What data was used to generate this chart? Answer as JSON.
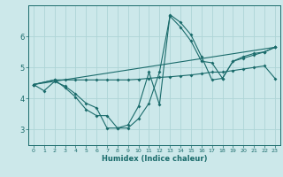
{
  "xlabel": "Humidex (Indice chaleur)",
  "bg_color": "#cce8ea",
  "line_color": "#1a6b6b",
  "grid_color": "#aed4d6",
  "xlim": [
    -0.5,
    23.5
  ],
  "ylim": [
    2.5,
    7.0
  ],
  "yticks": [
    3,
    4,
    5,
    6
  ],
  "xticks": [
    0,
    1,
    2,
    3,
    4,
    5,
    6,
    7,
    8,
    9,
    10,
    11,
    12,
    13,
    14,
    15,
    16,
    17,
    18,
    19,
    20,
    21,
    22,
    23
  ],
  "lines": [
    {
      "x": [
        0,
        1,
        2,
        3,
        4,
        5,
        6,
        7,
        8,
        9,
        10,
        11,
        12,
        13,
        14,
        15,
        16,
        17,
        18,
        19,
        20,
        21,
        22,
        23
      ],
      "y": [
        4.45,
        4.25,
        4.55,
        4.4,
        4.15,
        3.85,
        3.7,
        3.05,
        3.05,
        3.15,
        3.75,
        4.85,
        3.8,
        6.7,
        6.45,
        6.05,
        5.35,
        4.6,
        4.65,
        5.2,
        5.35,
        5.45,
        5.5,
        5.65
      ]
    },
    {
      "x": [
        0,
        2,
        3,
        4,
        5,
        6,
        7,
        8,
        9,
        10,
        11,
        12,
        13,
        14,
        15,
        16,
        17,
        18,
        19,
        20,
        21,
        22,
        23
      ],
      "y": [
        4.45,
        4.6,
        4.6,
        4.6,
        4.6,
        4.6,
        4.6,
        4.6,
        4.6,
        4.62,
        4.65,
        4.68,
        4.7,
        4.73,
        4.76,
        4.8,
        4.85,
        4.85,
        4.9,
        4.95,
        5.0,
        5.05,
        4.65
      ]
    },
    {
      "x": [
        0,
        2,
        3,
        4,
        5,
        6,
        7,
        8,
        9,
        10,
        11,
        12,
        13,
        14,
        15,
        16,
        17,
        18,
        19,
        20,
        21,
        22,
        23
      ],
      "y": [
        4.45,
        4.6,
        4.35,
        4.05,
        3.65,
        3.45,
        3.45,
        3.05,
        3.05,
        3.35,
        3.85,
        4.85,
        6.65,
        6.3,
        5.85,
        5.2,
        5.15,
        4.65,
        5.2,
        5.3,
        5.4,
        5.5,
        5.65
      ]
    },
    {
      "x": [
        0,
        23
      ],
      "y": [
        4.45,
        5.65
      ]
    }
  ]
}
